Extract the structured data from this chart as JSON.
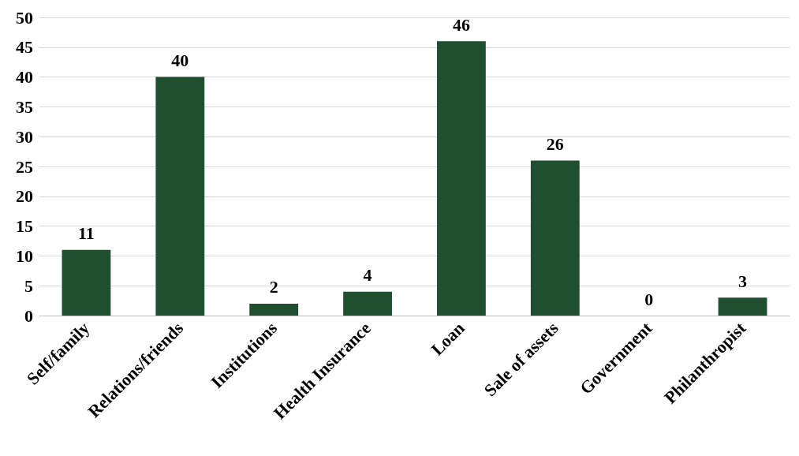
{
  "chart_data": {
    "type": "bar",
    "categories": [
      "Self/family",
      "Relations/friends",
      "Institutions",
      "Health Insurance",
      "Loan",
      "Sale of assets",
      "Government",
      "Philanthropist"
    ],
    "values": [
      11,
      40,
      2,
      4,
      46,
      26,
      0,
      3
    ],
    "color": "#1f4f2e",
    "ylim": [
      0,
      50
    ],
    "yticks": [
      0,
      5,
      10,
      15,
      20,
      25,
      30,
      35,
      40,
      45,
      50
    ],
    "grid": "y",
    "data_labels": true
  }
}
